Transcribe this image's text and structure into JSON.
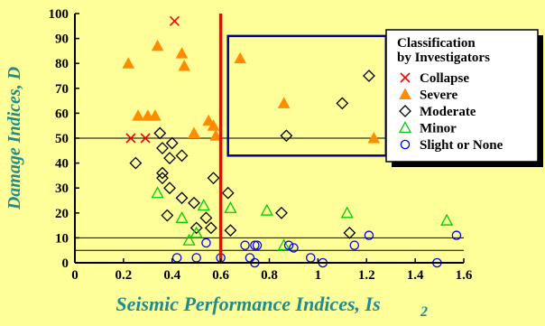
{
  "chart_data": {
    "type": "scatter",
    "xlabel": "Seismic Performance Indices, Is",
    "xlabel_sub": "2",
    "ylabel": "Damage Indices, D",
    "xlim": [
      0,
      1.6
    ],
    "ylim": [
      0,
      100
    ],
    "xticks": [
      "0",
      "0.2",
      "0.4",
      "0.6",
      "0.8",
      "1",
      "1.2",
      "1.4",
      "1.6"
    ],
    "yticks": [
      "0",
      "10",
      "20",
      "30",
      "40",
      "50",
      "60",
      "70",
      "80",
      "90",
      "100"
    ],
    "grid": false,
    "reference_lines_y": [
      5,
      10,
      50
    ],
    "threshold_x": 0.6,
    "highlight_box": {
      "x": [
        0.63,
        1.28
      ],
      "y": [
        43,
        91
      ]
    },
    "legend_title": [
      "Classification",
      "by Investigators"
    ],
    "legend_position": "top-right",
    "colors": {
      "background": "#ffff99",
      "collapse": "#ff0000",
      "severe": "#ff8c00",
      "moderate": "#000000",
      "minor": "#00cc00",
      "slight": "#0000ff",
      "threshold_line": "#ff0000",
      "highlight_box": "#00008b",
      "axis_title": "#1f8c8c"
    },
    "series": [
      {
        "name": "Collapse",
        "marker": "x",
        "points": [
          [
            0.41,
            97
          ],
          [
            0.23,
            50
          ],
          [
            0.29,
            50
          ]
        ]
      },
      {
        "name": "Severe",
        "marker": "triangle-filled",
        "points": [
          [
            0.22,
            80
          ],
          [
            0.34,
            87
          ],
          [
            0.44,
            84
          ],
          [
            0.45,
            79
          ],
          [
            0.26,
            59
          ],
          [
            0.3,
            59
          ],
          [
            0.33,
            59
          ],
          [
            0.49,
            52
          ],
          [
            0.55,
            57
          ],
          [
            0.57,
            55
          ],
          [
            0.58,
            51
          ],
          [
            0.68,
            82
          ],
          [
            0.86,
            64
          ],
          [
            1.23,
            50
          ]
        ]
      },
      {
        "name": "Moderate",
        "marker": "diamond-open",
        "points": [
          [
            0.25,
            40
          ],
          [
            0.35,
            52
          ],
          [
            0.36,
            46
          ],
          [
            0.36,
            36
          ],
          [
            0.36,
            34
          ],
          [
            0.4,
            48
          ],
          [
            0.39,
            42
          ],
          [
            0.44,
            43
          ],
          [
            0.39,
            30
          ],
          [
            0.38,
            19
          ],
          [
            0.44,
            26
          ],
          [
            0.49,
            24
          ],
          [
            0.5,
            14
          ],
          [
            0.54,
            18
          ],
          [
            0.56,
            14
          ],
          [
            0.57,
            34
          ],
          [
            0.63,
            28
          ],
          [
            0.64,
            13
          ],
          [
            0.85,
            20
          ],
          [
            0.87,
            51
          ],
          [
            1.1,
            64
          ],
          [
            1.13,
            12
          ],
          [
            1.21,
            75
          ]
        ]
      },
      {
        "name": "Minor",
        "marker": "triangle-open",
        "points": [
          [
            0.34,
            28
          ],
          [
            0.44,
            18
          ],
          [
            0.47,
            9
          ],
          [
            0.5,
            12
          ],
          [
            0.53,
            23
          ],
          [
            0.64,
            22
          ],
          [
            0.79,
            21
          ],
          [
            0.86,
            7
          ],
          [
            1.12,
            20
          ],
          [
            1.53,
            17
          ]
        ]
      },
      {
        "name": "Slight or None",
        "marker": "circle-open",
        "points": [
          [
            0.42,
            2
          ],
          [
            0.5,
            2
          ],
          [
            0.54,
            8
          ],
          [
            0.6,
            2
          ],
          [
            0.7,
            7
          ],
          [
            0.72,
            2
          ],
          [
            0.74,
            0
          ],
          [
            0.74,
            7
          ],
          [
            0.75,
            7
          ],
          [
            0.88,
            7
          ],
          [
            0.9,
            6
          ],
          [
            0.97,
            2
          ],
          [
            1.02,
            0
          ],
          [
            1.15,
            7
          ],
          [
            1.21,
            11
          ],
          [
            1.49,
            0
          ],
          [
            1.57,
            11
          ]
        ]
      }
    ]
  }
}
